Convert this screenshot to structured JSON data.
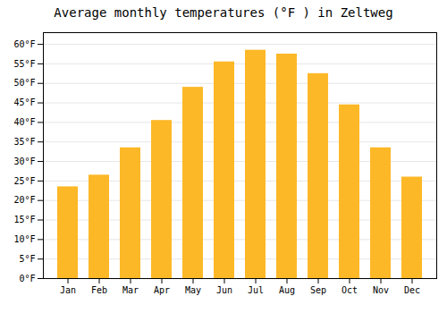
{
  "chart_data": {
    "type": "bar",
    "title": "Average monthly temperatures (°F ) in Zeltweg",
    "categories": [
      "Jan",
      "Feb",
      "Mar",
      "Apr",
      "May",
      "Jun",
      "Jul",
      "Aug",
      "Sep",
      "Oct",
      "Nov",
      "Dec"
    ],
    "values": [
      23.5,
      26.5,
      33.5,
      40.5,
      49.0,
      55.5,
      58.5,
      57.5,
      52.5,
      44.5,
      33.5,
      26.0
    ],
    "color": "#FDB827",
    "ylim": [
      0,
      63
    ],
    "yticks": [
      {
        "value": 0,
        "label": "0°F"
      },
      {
        "value": 5,
        "label": "5°F"
      },
      {
        "value": 10,
        "label": "10°F"
      },
      {
        "value": 15,
        "label": "15°F"
      },
      {
        "value": 20,
        "label": "20°F"
      },
      {
        "value": 25,
        "label": "25°F"
      },
      {
        "value": 30,
        "label": "30°F"
      },
      {
        "value": 35,
        "label": "35°F"
      },
      {
        "value": 40,
        "label": "40°F"
      },
      {
        "value": 45,
        "label": "45°F"
      },
      {
        "value": 50,
        "label": "50°F"
      },
      {
        "value": 55,
        "label": "55°F"
      },
      {
        "value": 60,
        "label": "60°F"
      }
    ],
    "grid": true
  }
}
